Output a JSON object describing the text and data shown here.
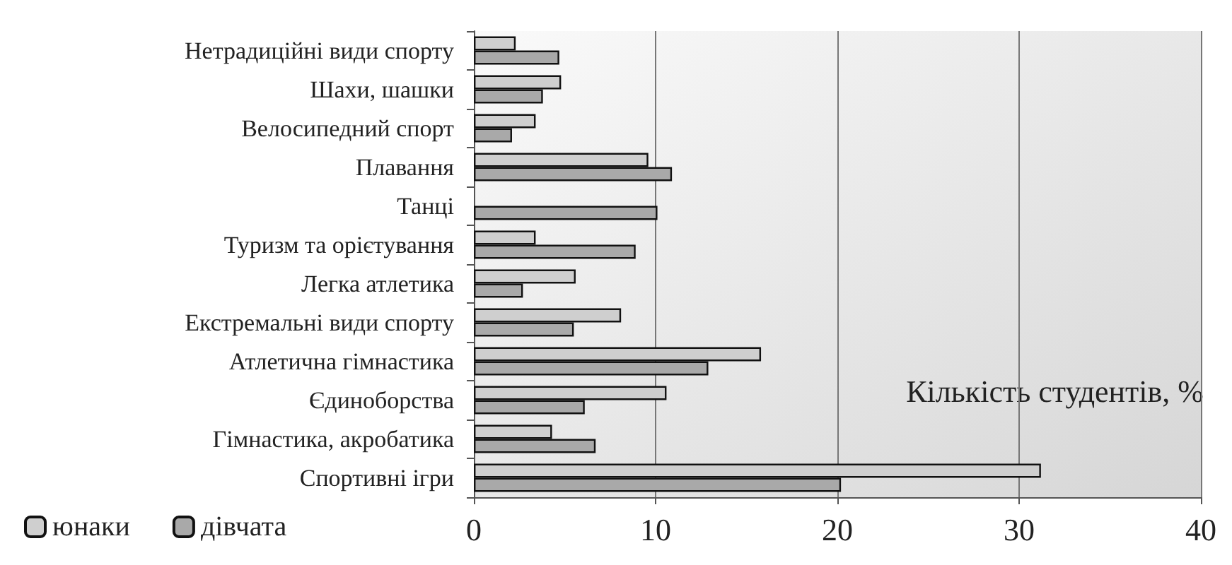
{
  "chart_data": {
    "type": "bar",
    "orientation": "horizontal",
    "xlabel": "Кількість студентів, %",
    "categories": [
      "Нетрадиційні види спорту",
      "Шахи, шашки",
      "Велосипедний спорт",
      "Плавання",
      "Танці",
      "Туризм та орієтування",
      "Легка атлетика",
      "Екстремальні види спорту",
      "Атлетична гімнастика",
      "Єдиноборства",
      "Гімнастика, акробатика",
      "Спортивні ігри"
    ],
    "series": [
      {
        "name": "юнаки",
        "color": "#cfcfcf",
        "values": [
          2.3,
          4.8,
          3.4,
          9.6,
          null,
          3.4,
          5.6,
          8.1,
          15.8,
          10.6,
          4.3,
          31.2
        ]
      },
      {
        "name": "дівчата",
        "color": "#a9a9a9",
        "values": [
          4.7,
          3.8,
          2.1,
          10.9,
          10.1,
          8.9,
          2.7,
          5.5,
          12.9,
          6.1,
          6.7,
          20.2
        ]
      }
    ],
    "xlim": [
      0,
      40
    ],
    "xticks": [
      0,
      10,
      20,
      30,
      40
    ],
    "grid": "x",
    "legend": "bottom left"
  }
}
